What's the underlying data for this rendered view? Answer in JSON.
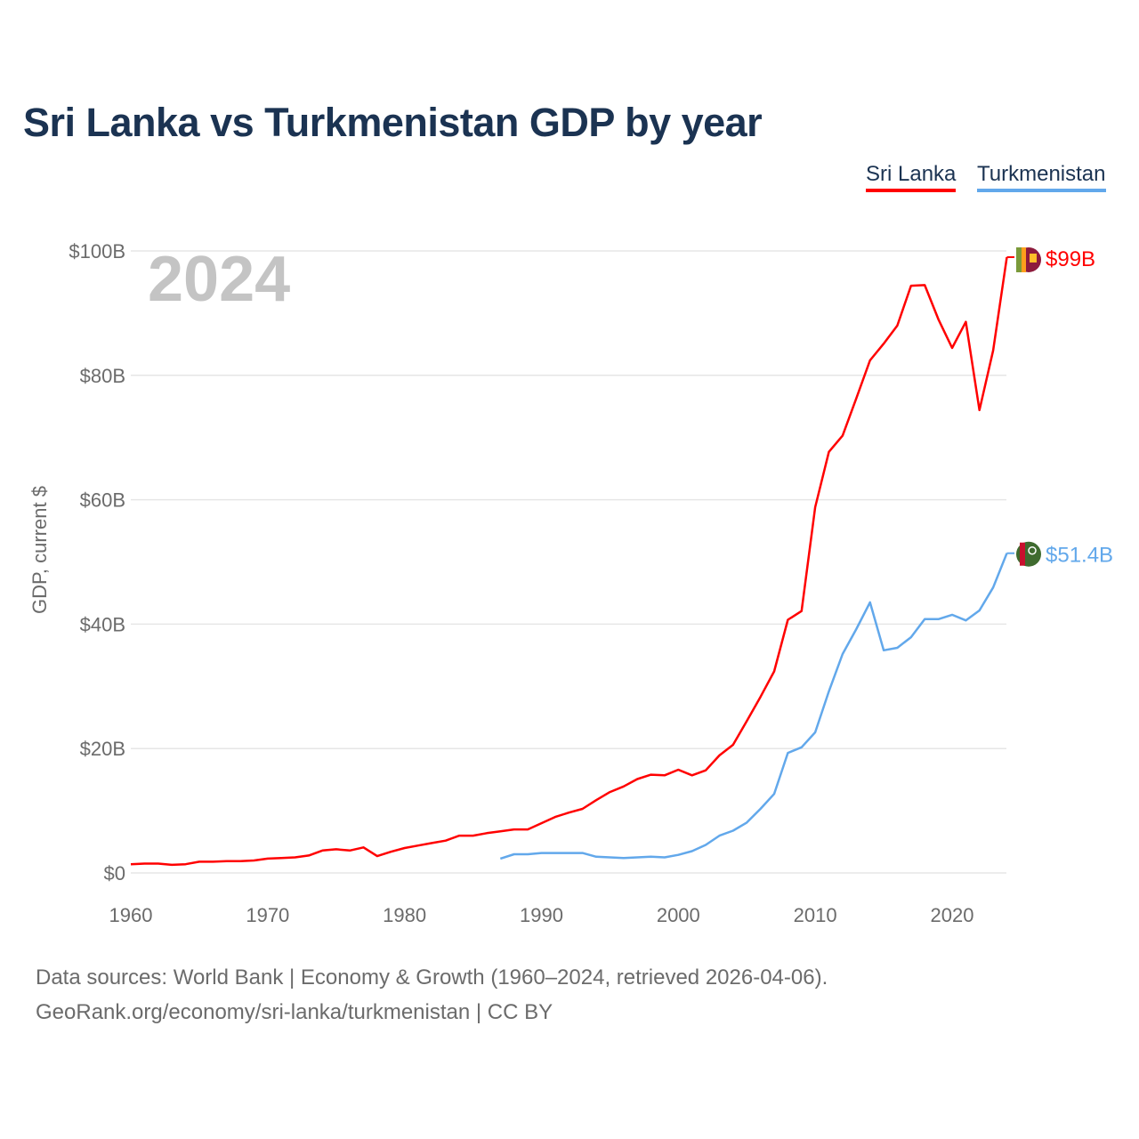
{
  "chart_data": {
    "type": "line",
    "title": "Sri Lanka vs Turkmenistan GDP by year",
    "xlabel": "",
    "ylabel": "GDP, current $",
    "xlim": [
      1960,
      2024
    ],
    "ylim": [
      0,
      100
    ],
    "x_ticks": [
      "1960",
      "1970",
      "1980",
      "1990",
      "2000",
      "2010",
      "2020"
    ],
    "y_ticks": [
      "$0",
      "$20B",
      "$40B",
      "$60B",
      "$80B",
      "$100B"
    ],
    "y_tick_values": [
      0,
      20,
      40,
      60,
      80,
      100
    ],
    "x_tick_values": [
      1960,
      1970,
      1980,
      1990,
      2000,
      2010,
      2020
    ],
    "grid": true,
    "legend_placement": "top-right",
    "year_label": "2024",
    "series": [
      {
        "name": "Sri Lanka",
        "color": "#ff0000",
        "end_label": "$99B",
        "start_year": 1960,
        "values": [
          1.4,
          1.5,
          1.5,
          1.3,
          1.4,
          1.8,
          1.8,
          1.9,
          1.9,
          2.0,
          2.3,
          2.4,
          2.5,
          2.8,
          3.6,
          3.8,
          3.6,
          4.1,
          2.7,
          3.4,
          4.0,
          4.4,
          4.8,
          5.2,
          6.0,
          6.0,
          6.4,
          6.7,
          7.0,
          7.0,
          8.0,
          9.0,
          9.7,
          10.3,
          11.7,
          13.0,
          13.9,
          15.1,
          15.8,
          15.7,
          16.6,
          15.7,
          16.5,
          18.9,
          20.6,
          24.4,
          28.3,
          32.4,
          40.7,
          42.1,
          58.8,
          67.7,
          70.3,
          76.3,
          82.4,
          85.1,
          88.0,
          94.4,
          94.5,
          89.0,
          84.4,
          88.6,
          74.4,
          84.0,
          99.0
        ]
      },
      {
        "name": "Turkmenistan",
        "color": "#62a8eb",
        "end_label": "$51.4B",
        "start_year": 1987,
        "values": [
          2.3,
          3.0,
          3.0,
          3.2,
          3.2,
          3.2,
          3.2,
          2.6,
          2.5,
          2.4,
          2.5,
          2.6,
          2.5,
          2.9,
          3.5,
          4.5,
          6.0,
          6.8,
          8.1,
          10.3,
          12.7,
          19.3,
          20.2,
          22.6,
          29.2,
          35.2,
          39.2,
          43.5,
          35.8,
          36.2,
          37.9,
          40.8,
          40.8,
          41.5,
          40.6,
          42.2,
          45.9,
          51.4
        ]
      }
    ]
  },
  "footer": {
    "line1": "Data sources: World Bank | Economy & Growth (1960–2024, retrieved 2026-04-06).",
    "line2": "GeoRank.org/economy/sri-lanka/turkmenistan | CC BY"
  }
}
